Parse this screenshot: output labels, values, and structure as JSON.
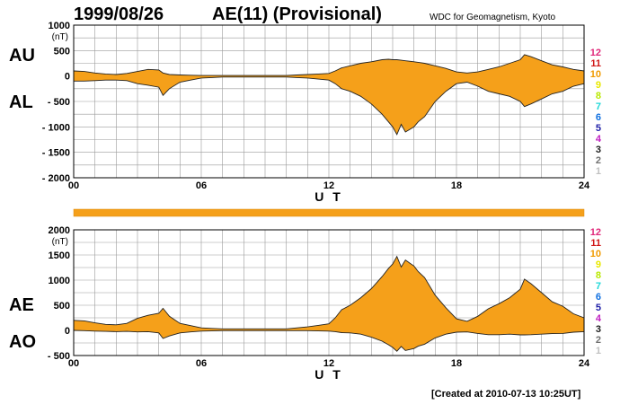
{
  "header": {
    "date": "1999/08/26",
    "title": "AE(11) (Provisional)",
    "source": "WDC for Geomagnetism, Kyoto"
  },
  "footer": {
    "created": "[Created at 2010-07-13 10:25UT]"
  },
  "legend": {
    "stations": [
      "12",
      "11",
      "10",
      "9",
      "8",
      "7",
      "6",
      "5",
      "4",
      "3",
      "2",
      "1"
    ],
    "colors": [
      "#e0287a",
      "#d01818",
      "#f09a00",
      "#e8e800",
      "#b8e800",
      "#20d8d8",
      "#1070e0",
      "#2020a8",
      "#c020c0",
      "#202020",
      "#707070",
      "#c0c0c0"
    ]
  },
  "chart_data": [
    {
      "type": "area",
      "name": "AU/AL",
      "unit": "(nT)",
      "side_labels": [
        "AU",
        "AL"
      ],
      "xlabel": "U T",
      "xlim": [
        0,
        24
      ],
      "ylim": [
        -2000,
        1000
      ],
      "x_ticks": [
        "00",
        "06",
        "12",
        "18",
        "24"
      ],
      "y_ticks": [
        "1000",
        "500",
        "0",
        "- 500",
        "- 1000",
        "- 1500",
        "- 2000"
      ],
      "y_tick_values": [
        1000,
        500,
        0,
        -500,
        -1000,
        -1500,
        -2000
      ],
      "fill_color": "#f5a01a",
      "x": [
        0,
        0.5,
        1,
        1.5,
        2,
        2.5,
        3,
        3.5,
        4,
        4.2,
        4.5,
        5,
        5.5,
        6,
        6.5,
        7,
        7.5,
        8,
        8.5,
        9,
        9.5,
        10,
        10.5,
        11,
        11.5,
        12,
        12.3,
        12.6,
        13,
        13.5,
        14,
        14.5,
        14.8,
        15,
        15.2,
        15.4,
        15.6,
        15.8,
        16,
        16.2,
        16.5,
        17,
        17.5,
        18,
        18.5,
        19,
        19.5,
        20,
        20.5,
        21,
        21.2,
        21.5,
        22,
        22.5,
        23,
        23.5,
        24
      ],
      "upper": [
        100,
        90,
        60,
        40,
        30,
        50,
        90,
        130,
        120,
        60,
        30,
        20,
        15,
        10,
        10,
        10,
        10,
        10,
        10,
        10,
        10,
        10,
        20,
        30,
        40,
        50,
        100,
        160,
        200,
        250,
        280,
        320,
        330,
        320,
        320,
        310,
        300,
        290,
        280,
        270,
        250,
        200,
        150,
        80,
        60,
        80,
        130,
        180,
        250,
        320,
        420,
        380,
        300,
        220,
        180,
        130,
        100
      ],
      "lower": [
        -100,
        -100,
        -90,
        -80,
        -80,
        -90,
        -150,
        -180,
        -220,
        -380,
        -250,
        -120,
        -80,
        -40,
        -30,
        -20,
        -20,
        -20,
        -20,
        -20,
        -20,
        -20,
        -30,
        -40,
        -60,
        -80,
        -150,
        -250,
        -300,
        -400,
        -550,
        -750,
        -900,
        -1000,
        -1150,
        -950,
        -1100,
        -1050,
        -1000,
        -900,
        -800,
        -500,
        -300,
        -150,
        -120,
        -200,
        -300,
        -350,
        -400,
        -500,
        -600,
        -550,
        -450,
        -350,
        -300,
        -200,
        -150
      ]
    },
    {
      "type": "area",
      "name": "AE/AO",
      "unit": "(nT)",
      "side_labels": [
        "AE",
        "AO"
      ],
      "xlabel": "U T",
      "xlim": [
        0,
        24
      ],
      "ylim": [
        -500,
        2000
      ],
      "x_ticks": [
        "00",
        "06",
        "12",
        "18",
        "24"
      ],
      "y_ticks": [
        "2000",
        "1500",
        "1000",
        "500",
        "0",
        "- 500"
      ],
      "y_tick_values": [
        2000,
        1500,
        1000,
        500,
        0,
        -500
      ],
      "fill_color": "#f5a01a",
      "x": [
        0,
        0.5,
        1,
        1.5,
        2,
        2.5,
        3,
        3.5,
        4,
        4.2,
        4.5,
        5,
        5.5,
        6,
        6.5,
        7,
        7.5,
        8,
        8.5,
        9,
        9.5,
        10,
        10.5,
        11,
        11.5,
        12,
        12.3,
        12.6,
        13,
        13.5,
        14,
        14.5,
        14.8,
        15,
        15.2,
        15.4,
        15.6,
        15.8,
        16,
        16.2,
        16.5,
        17,
        17.5,
        18,
        18.5,
        19,
        19.5,
        20,
        20.5,
        21,
        21.2,
        21.5,
        22,
        22.5,
        23,
        23.5,
        24
      ],
      "upper": [
        200,
        190,
        150,
        120,
        110,
        140,
        240,
        300,
        340,
        440,
        280,
        140,
        95,
        50,
        40,
        30,
        30,
        30,
        30,
        30,
        30,
        30,
        50,
        70,
        100,
        130,
        250,
        410,
        500,
        650,
        830,
        1070,
        1230,
        1320,
        1470,
        1260,
        1400,
        1340,
        1280,
        1170,
        1050,
        700,
        450,
        230,
        180,
        280,
        430,
        530,
        650,
        820,
        1020,
        930,
        750,
        570,
        480,
        330,
        250
      ],
      "lower": [
        0,
        -5,
        -15,
        -20,
        -25,
        -20,
        -30,
        -25,
        -50,
        -160,
        -110,
        -50,
        -30,
        -15,
        -10,
        -5,
        -5,
        -5,
        -5,
        -5,
        -5,
        -5,
        -5,
        -5,
        -10,
        -15,
        -25,
        -45,
        -50,
        -75,
        -135,
        -215,
        -285,
        -340,
        -415,
        -320,
        -400,
        -380,
        -360,
        -315,
        -275,
        -150,
        -75,
        -35,
        -30,
        -60,
        -85,
        -85,
        -75,
        -90,
        -90,
        -85,
        -75,
        -65,
        -60,
        -35,
        -25
      ]
    }
  ]
}
